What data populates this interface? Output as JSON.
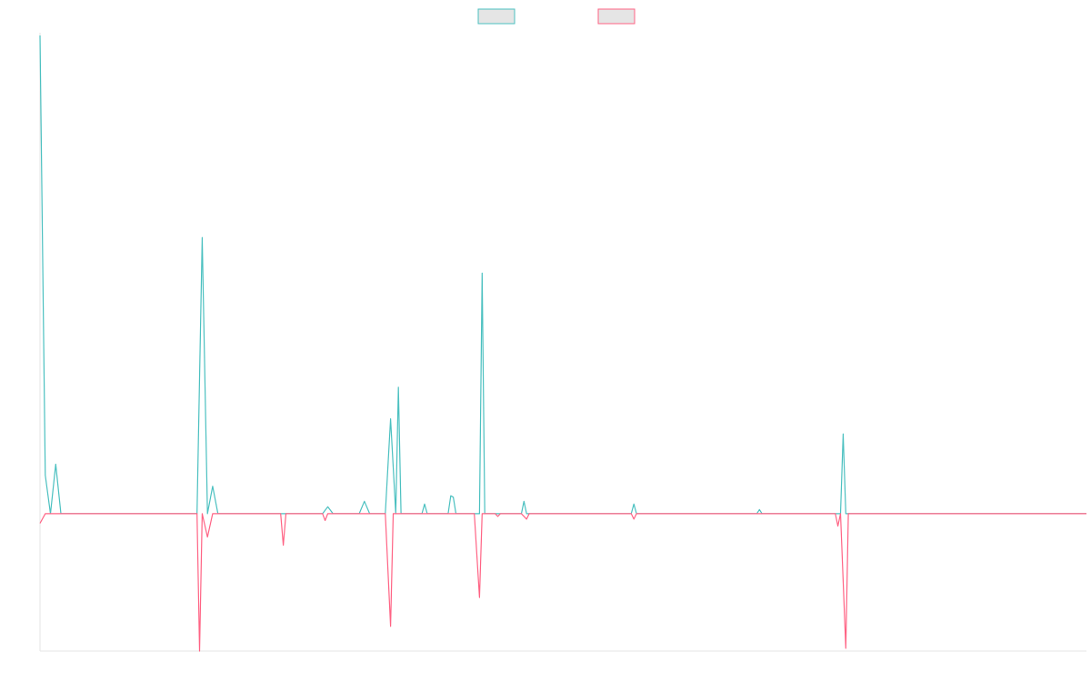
{
  "chart_data": {
    "type": "line",
    "title": "",
    "xlabel": "",
    "ylabel": "",
    "grid": false,
    "legend_position": "top-center",
    "x_count": 200,
    "ylim": [
      -100,
      350
    ],
    "series": [
      {
        "name": "",
        "color": "#4bc0c0",
        "fill": "#e5e5e5",
        "points": [
          [
            0,
            348
          ],
          [
            1,
            28
          ],
          [
            2,
            0
          ],
          [
            3,
            36
          ],
          [
            4,
            0
          ],
          [
            30,
            0
          ],
          [
            31,
            201
          ],
          [
            32,
            0
          ],
          [
            33,
            20
          ],
          [
            34,
            0
          ],
          [
            54,
            0
          ],
          [
            55,
            5
          ],
          [
            56,
            0
          ],
          [
            61,
            0
          ],
          [
            62,
            9
          ],
          [
            63,
            0
          ],
          [
            66,
            0
          ],
          [
            67,
            69
          ],
          [
            68,
            0
          ],
          [
            68.5,
            92
          ],
          [
            69,
            0
          ],
          [
            73,
            0
          ],
          [
            73.5,
            7
          ],
          [
            74,
            0
          ],
          [
            78,
            0
          ],
          [
            78.5,
            13
          ],
          [
            79,
            12
          ],
          [
            79.5,
            0
          ],
          [
            84,
            0
          ],
          [
            84.5,
            175
          ],
          [
            85,
            0
          ],
          [
            92,
            0
          ],
          [
            92.5,
            9
          ],
          [
            93,
            0
          ],
          [
            113,
            0
          ],
          [
            113.5,
            7
          ],
          [
            114,
            0
          ],
          [
            137,
            0
          ],
          [
            137.5,
            3
          ],
          [
            138,
            0
          ],
          [
            153,
            0
          ],
          [
            153.5,
            58
          ],
          [
            154,
            0
          ],
          [
            200,
            0
          ]
        ]
      },
      {
        "name": "",
        "color": "#ff6384",
        "fill": "#e5e5e5",
        "points": [
          [
            0,
            -7
          ],
          [
            1,
            0
          ],
          [
            30,
            0
          ],
          [
            30.5,
            -100
          ],
          [
            31,
            0
          ],
          [
            32,
            -17
          ],
          [
            33,
            0
          ],
          [
            46,
            0
          ],
          [
            46.5,
            -23
          ],
          [
            47,
            0
          ],
          [
            54,
            0
          ],
          [
            54.5,
            -5
          ],
          [
            55,
            0
          ],
          [
            66,
            0
          ],
          [
            67,
            -82
          ],
          [
            67.5,
            0
          ],
          [
            83,
            0
          ],
          [
            84,
            -61
          ],
          [
            84.5,
            0
          ],
          [
            87,
            0
          ],
          [
            87.5,
            -2
          ],
          [
            88,
            0
          ],
          [
            92,
            0
          ],
          [
            93,
            -4
          ],
          [
            93.5,
            0
          ],
          [
            113,
            0
          ],
          [
            113.5,
            -4
          ],
          [
            114,
            0
          ],
          [
            152,
            0
          ],
          [
            152.5,
            -9
          ],
          [
            153,
            0
          ],
          [
            154,
            -98
          ],
          [
            154.5,
            0
          ],
          [
            200,
            0
          ]
        ]
      }
    ]
  }
}
